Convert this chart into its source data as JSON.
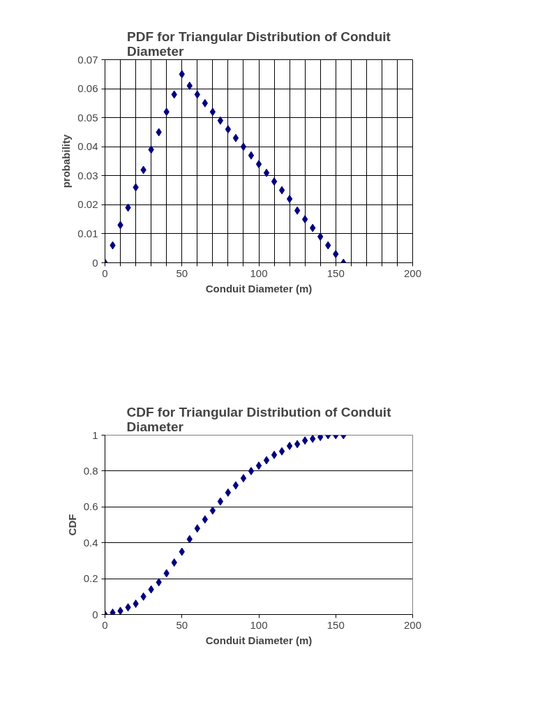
{
  "chart_data": [
    {
      "type": "scatter",
      "title": "PDF for Triangular Distribution of Conduit Diameter",
      "xlabel": "Conduit Diameter (m)",
      "ylabel": "probability",
      "marker": "diamond",
      "grid": true,
      "x": [
        0,
        5,
        10,
        15,
        20,
        25,
        30,
        35,
        40,
        45,
        50,
        55,
        60,
        65,
        70,
        75,
        80,
        85,
        90,
        95,
        100,
        105,
        110,
        115,
        120,
        125,
        130,
        135,
        140,
        145,
        150,
        155
      ],
      "series": [
        {
          "color": "#000080",
          "values": [
            0,
            0.006,
            0.013,
            0.019,
            0.026,
            0.032,
            0.039,
            0.045,
            0.052,
            0.058,
            0.065,
            0.061,
            0.058,
            0.055,
            0.052,
            0.049,
            0.046,
            0.043,
            0.04,
            0.037,
            0.034,
            0.031,
            0.028,
            0.025,
            0.022,
            0.018,
            0.015,
            0.012,
            0.009,
            0.006,
            0.003,
            0
          ]
        }
      ],
      "xlim": [
        0,
        200
      ],
      "ylim": [
        0,
        0.07
      ],
      "xticks": [
        0,
        {
          "value": 10,
          "label": null
        },
        {
          "value": 20,
          "label": null
        },
        {
          "value": 30,
          "label": null
        },
        {
          "value": 40,
          "label": null
        },
        50,
        {
          "value": 60,
          "label": null
        },
        {
          "value": 70,
          "label": null
        },
        {
          "value": 80,
          "label": null
        },
        {
          "value": 90,
          "label": null
        },
        100,
        {
          "value": 110,
          "label": null
        },
        {
          "value": 120,
          "label": null
        },
        {
          "value": 130,
          "label": null
        },
        {
          "value": 140,
          "label": null
        },
        150,
        {
          "value": 160,
          "label": null
        },
        {
          "value": 170,
          "label": null
        },
        {
          "value": 180,
          "label": null
        },
        {
          "value": 190,
          "label": null
        },
        200
      ],
      "yticks": [
        0,
        0.01,
        0.02,
        0.03,
        0.04,
        0.05,
        0.06,
        0.07
      ]
    },
    {
      "type": "scatter",
      "title": "CDF for Triangular Distribution of Conduit Diameter",
      "xlabel": "Conduit Diameter (m)",
      "ylabel": "CDF",
      "marker": "diamond",
      "grid": "y",
      "x": [
        0,
        5,
        10,
        15,
        20,
        25,
        30,
        35,
        40,
        45,
        50,
        55,
        60,
        65,
        70,
        75,
        80,
        85,
        90,
        95,
        100,
        105,
        110,
        115,
        120,
        125,
        130,
        135,
        140,
        145,
        150,
        155
      ],
      "series": [
        {
          "color": "#000080",
          "values": [
            0,
            0.01,
            0.02,
            0.04,
            0.06,
            0.1,
            0.14,
            0.18,
            0.23,
            0.29,
            0.35,
            0.42,
            0.48,
            0.53,
            0.58,
            0.63,
            0.68,
            0.72,
            0.76,
            0.8,
            0.83,
            0.86,
            0.89,
            0.91,
            0.94,
            0.95,
            0.97,
            0.98,
            0.99,
            1.0,
            1.0,
            1.0
          ]
        }
      ],
      "xlim": [
        0,
        200
      ],
      "ylim": [
        0,
        1
      ],
      "xticks": [
        0,
        50,
        100,
        150,
        200
      ],
      "yticks": [
        0,
        0.2,
        0.4,
        0.6,
        0.8,
        1
      ]
    }
  ]
}
